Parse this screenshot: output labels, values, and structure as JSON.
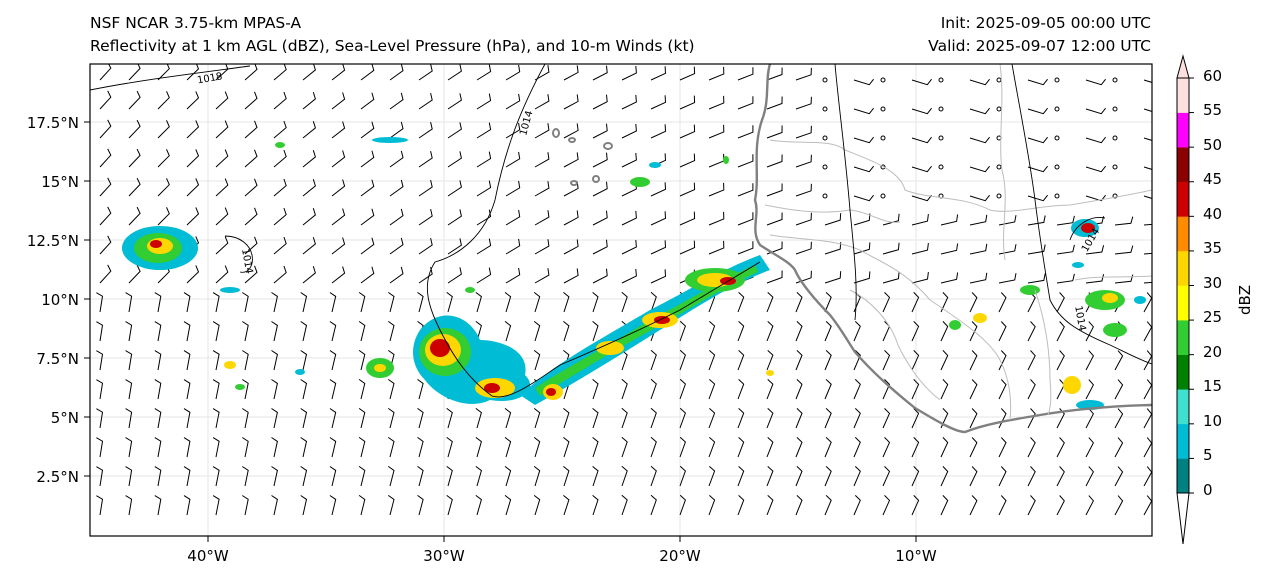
{
  "header": {
    "title": "NSF NCAR 3.75-km MPAS-A",
    "subtitle": "Reflectivity at 1 km AGL (dBZ), Sea-Level Pressure (hPa), and 10-m Winds (kt)",
    "init": "Init: 2025-09-05 00:00 UTC",
    "valid": "Valid: 2025-09-07 12:00 UTC"
  },
  "axes": {
    "lat_ticks": [
      "17.5°N",
      "15°N",
      "12.5°N",
      "10°N",
      "7.5°N",
      "5°N",
      "2.5°N"
    ],
    "lon_ticks": [
      "40°W",
      "30°W",
      "20°W",
      "10°W"
    ]
  },
  "colorbar": {
    "label": "dBZ",
    "ticks": [
      "0",
      "5",
      "10",
      "15",
      "20",
      "25",
      "30",
      "35",
      "40",
      "45",
      "50",
      "55",
      "60"
    ],
    "colors": [
      "#008080",
      "#00bcd4",
      "#40e0d0",
      "#008000",
      "#32cd32",
      "#ffff00",
      "#ffd700",
      "#ff8c00",
      "#cc0000",
      "#8b0000",
      "#ff00ff",
      "#fde0dd"
    ]
  },
  "contours": {
    "labels": [
      "1018",
      "1014",
      "1014",
      "1014",
      "1014"
    ]
  },
  "colors": {
    "coastline": "#808080",
    "borders": "#bdbdbd",
    "isobars": "#000000"
  }
}
